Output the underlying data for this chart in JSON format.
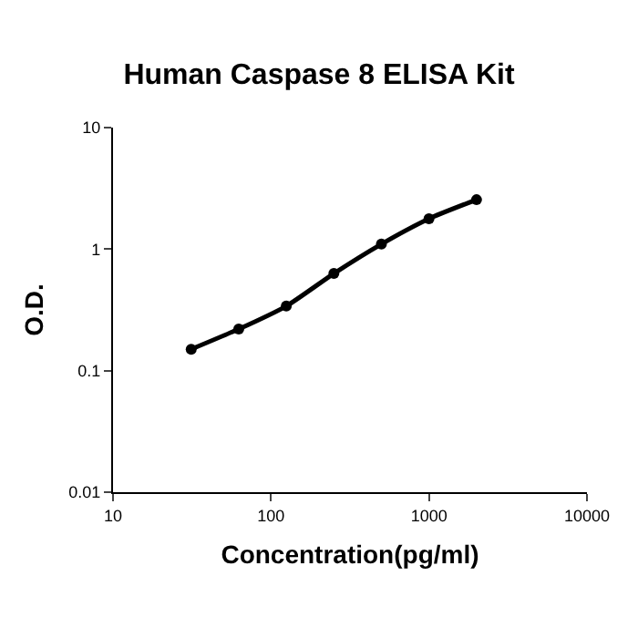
{
  "chart_data": {
    "type": "line",
    "title": "Human Caspase 8 ELISA Kit",
    "xlabel": "Concentration(pg/ml)",
    "ylabel": "O.D.",
    "log": "xy",
    "marker": "circle",
    "line_style": "solid",
    "grid": false,
    "xlim": [
      10,
      10000
    ],
    "xticks": [
      10,
      100,
      1000,
      10000
    ],
    "ylim": [
      0.01,
      10
    ],
    "yticks": [
      0.01,
      0.1,
      1,
      10
    ],
    "series": [
      {
        "color": "#000000",
        "x": [
          31.25,
          62.5,
          125,
          250,
          500,
          1000,
          2000
        ],
        "values": [
          0.15,
          0.22,
          0.34,
          0.63,
          1.1,
          1.78,
          2.55
        ]
      }
    ]
  }
}
